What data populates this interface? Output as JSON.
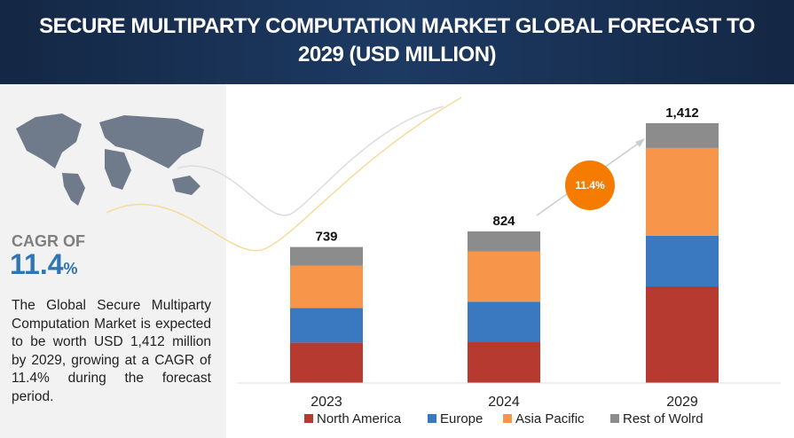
{
  "chart_data": {
    "type": "stacked-bar",
    "title": "SECURE MULTIPARTY COMPUTATION MARKET GLOBAL FORECAST TO 2029 (USD MILLION)",
    "categories": [
      "2023",
      "2024",
      "2029"
    ],
    "series": [
      {
        "name": "North America",
        "color": "#b73a30",
        "values": [
          220,
          226,
          525
        ]
      },
      {
        "name": "Europe",
        "color": "#3a78bf",
        "values": [
          187,
          216,
          275
        ]
      },
      {
        "name": "Asia Pacific",
        "color": "#f7964a",
        "values": [
          230,
          272,
          477
        ]
      },
      {
        "name": "Rest of Wolrd",
        "color": "#8c8c8c",
        "values": [
          102,
          110,
          135
        ]
      }
    ],
    "totals": {
      "values": [
        739,
        824,
        1412
      ],
      "value_labels": [
        "739",
        "824",
        "1,412"
      ]
    },
    "annotation": "11.4%",
    "ylim": [
      0,
      1450
    ]
  },
  "sidebar": {
    "cagr_label": "CAGR OF",
    "cagr_value": "11.4",
    "cagr_unit": "%",
    "text": "The Global Secure Multiparty Computation Market is expected to be worth USD 1,412 million by 2029, growing at a CAGR of 11.4% during the forecast period."
  }
}
